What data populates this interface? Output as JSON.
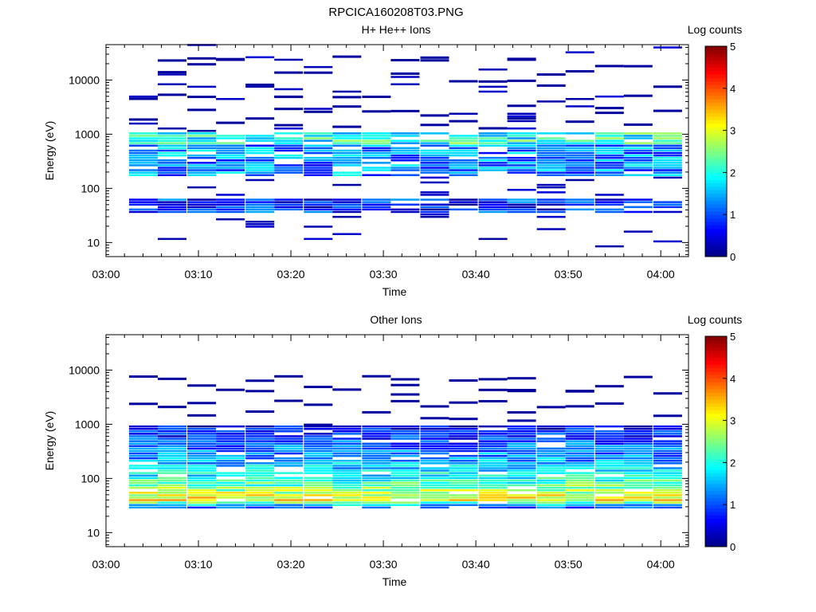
{
  "figure_title": "RPCICA160208T03.PNG",
  "chart_data": [
    {
      "type": "heatmap",
      "title": "H+ He++ Ions",
      "xlabel": "Time",
      "ylabel": "Energy (eV)",
      "x_ticks": [
        "03:00",
        "03:10",
        "03:20",
        "03:30",
        "03:40",
        "03:50",
        "04:00"
      ],
      "x_range": [
        "03:00",
        "04:03"
      ],
      "y_scale": "log",
      "y_ticks": [
        "10",
        "100",
        "1000",
        "10000"
      ],
      "y_range": [
        5.5,
        45000
      ],
      "colorbar": {
        "label": "Log counts",
        "ticks": [
          "0",
          "1",
          "2",
          "3",
          "4",
          "5"
        ],
        "range": [
          0,
          5
        ]
      },
      "time_bins_start_min": [
        2.5,
        5.6,
        8.8,
        11.9,
        15.1,
        18.2,
        21.4,
        24.5,
        27.7,
        30.8,
        34.0,
        37.1,
        40.3,
        43.4,
        46.6,
        49.7,
        52.9,
        56.0,
        59.2
      ],
      "bin_width_min": 3.1,
      "energy_range_ev": [
        8,
        40000
      ],
      "bands_ev": [
        {
          "range": [
            600,
            1000
          ],
          "level": 2.0
        },
        {
          "range": [
            160,
            600
          ],
          "level": 1.3
        },
        {
          "range": [
            32,
            60
          ],
          "level": 0.8
        }
      ],
      "sparse_lines_ev": [
        1500,
        1800,
        2600,
        3300,
        5000,
        9000,
        14000,
        22000,
        30000
      ]
    },
    {
      "type": "heatmap",
      "title": "Other Ions",
      "xlabel": "Time",
      "ylabel": "Energy (eV)",
      "x_ticks": [
        "03:00",
        "03:10",
        "03:20",
        "03:30",
        "03:40",
        "03:50",
        "04:00"
      ],
      "x_range": [
        "03:00",
        "04:03"
      ],
      "y_scale": "log",
      "y_ticks": [
        "10",
        "100",
        "1000",
        "10000"
      ],
      "y_range": [
        5.5,
        45000
      ],
      "colorbar": {
        "label": "Log counts",
        "ticks": [
          "0",
          "1",
          "2",
          "3",
          "4",
          "5"
        ],
        "range": [
          0,
          5
        ]
      },
      "time_bins_start_min": [
        2.5,
        5.6,
        8.8,
        11.9,
        15.1,
        18.2,
        21.4,
        24.5,
        27.7,
        30.8,
        34.0,
        37.1,
        40.3,
        43.4,
        46.6,
        49.7,
        52.9,
        56.0,
        59.2
      ],
      "bin_width_min": 3.1,
      "energy_range_ev": [
        20,
        1000
      ],
      "profile_ev_level": [
        [
          25,
          0.3
        ],
        [
          30,
          1.5
        ],
        [
          38,
          3.2
        ],
        [
          48,
          2.9
        ],
        [
          70,
          2.3
        ],
        [
          110,
          1.8
        ],
        [
          250,
          1.3
        ],
        [
          500,
          0.9
        ],
        [
          900,
          0.5
        ]
      ],
      "sparse_lines_ev": [
        1200,
        1600,
        2500,
        4000,
        5000,
        7500
      ]
    }
  ]
}
